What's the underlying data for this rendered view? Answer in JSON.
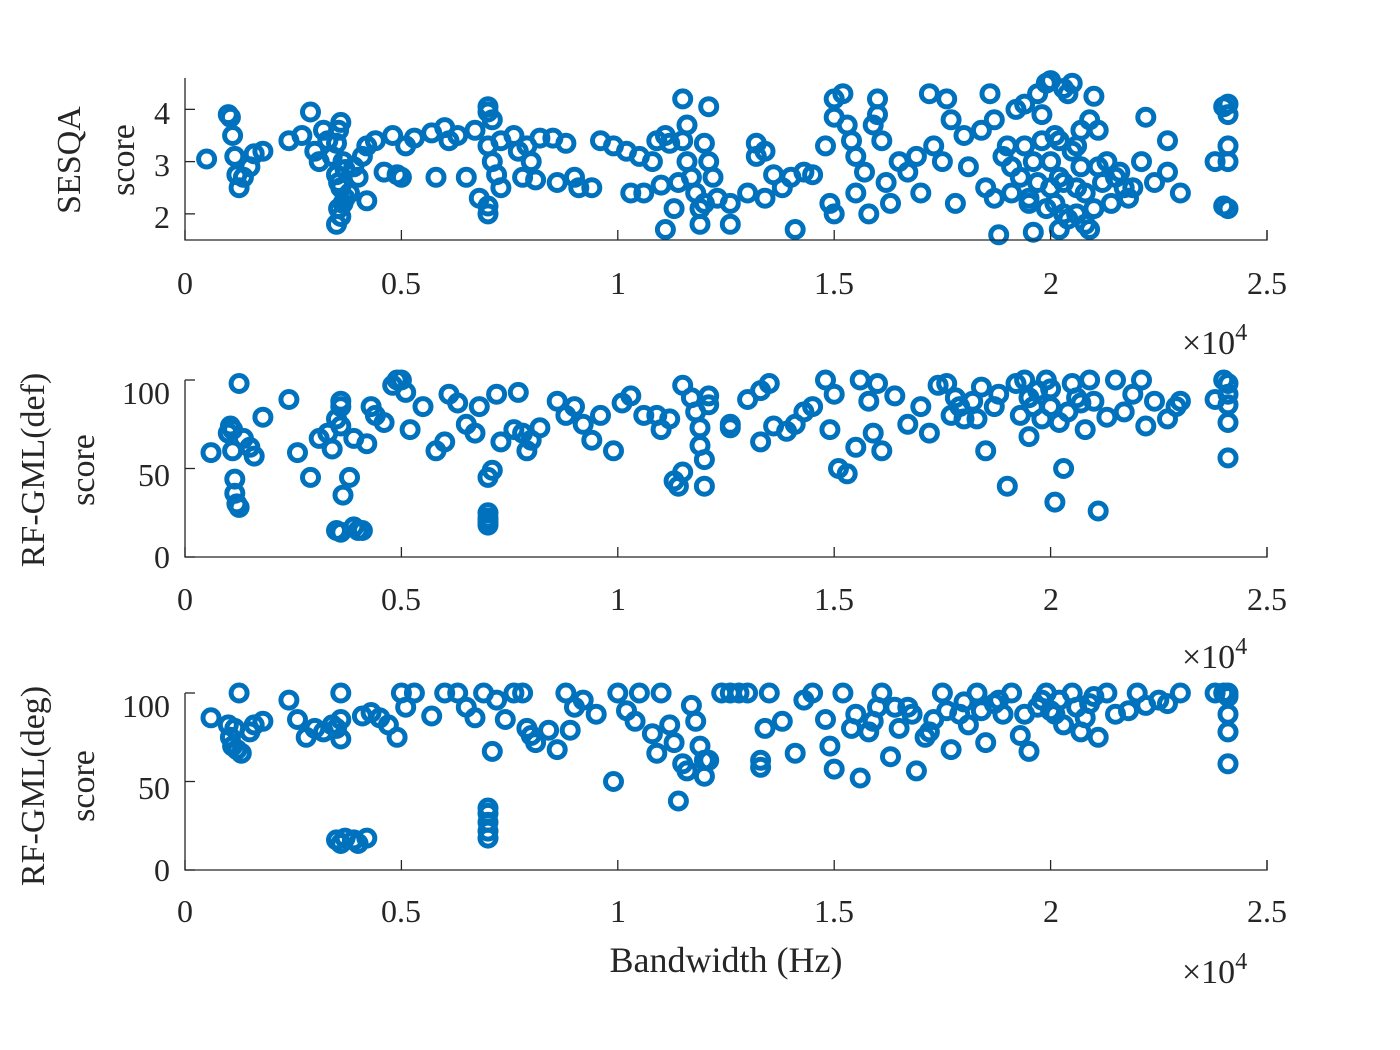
{
  "chart_data": [
    {
      "type": "scatter",
      "ylabel_lines": [
        "SESQA",
        "score"
      ],
      "xlim": [
        0,
        25000
      ],
      "ylim": [
        1.5,
        4.6
      ],
      "xticks": [
        "0",
        "0.5",
        "1",
        "1.5",
        "2",
        "2.5"
      ],
      "yticks": [
        2,
        3,
        4
      ],
      "ytick_labels": [
        "2",
        "3",
        "4"
      ],
      "x_exponent_base": "×10",
      "x_exponent_power": "4",
      "color": "#0072BD",
      "marker": "circle-open"
    },
    {
      "type": "scatter",
      "ylabel_lines": [
        "RF-GML(def)",
        "score"
      ],
      "xlim": [
        0,
        25000
      ],
      "ylim": [
        0,
        100
      ],
      "xticks": [
        "0",
        "0.5",
        "1",
        "1.5",
        "2",
        "2.5"
      ],
      "yticks": [
        0,
        50,
        100
      ],
      "ytick_labels": [
        "0",
        "50",
        "100"
      ],
      "x_exponent_base": "×10",
      "x_exponent_power": "4",
      "color": "#0072BD",
      "marker": "circle-open"
    },
    {
      "type": "scatter",
      "ylabel_lines": [
        "RF-GML(deg)",
        "score"
      ],
      "xlabel": "Bandwidth (Hz)",
      "xlim": [
        0,
        25000
      ],
      "ylim": [
        0,
        100
      ],
      "xticks": [
        "0",
        "0.5",
        "1",
        "1.5",
        "2",
        "2.5"
      ],
      "yticks": [
        0,
        50,
        100
      ],
      "ytick_labels": [
        "0",
        "50",
        "100"
      ],
      "x_exponent_base": "×10",
      "x_exponent_power": "4",
      "color": "#0072BD",
      "marker": "circle-open"
    }
  ]
}
